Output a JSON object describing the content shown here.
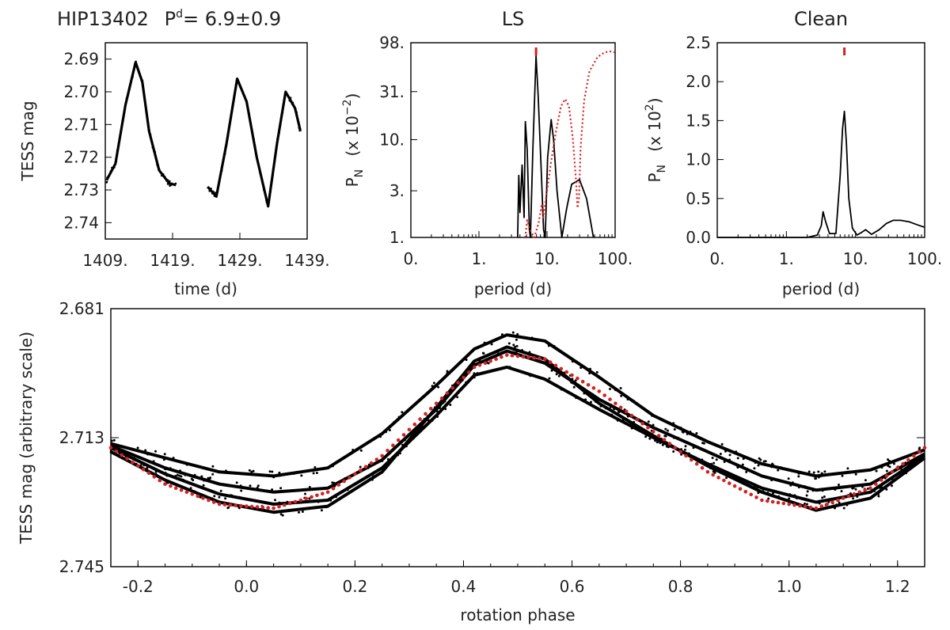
{
  "chart_data": [
    {
      "type": "scatter",
      "panel": "light-curve",
      "title_star": "HIP13402",
      "title_period_label": "P",
      "title_period_sup": "d",
      "title_period_value": "= 6.9±0.9",
      "xlabel": "time (d)",
      "ylabel": "TESS mag",
      "xlim": [
        1409,
        1439
      ],
      "ylim": [
        2.745,
        2.685
      ],
      "xticks": [
        1409,
        1419,
        1429,
        1439
      ],
      "xtick_labels": [
        "1409.",
        "1419.",
        "1429.",
        "1439."
      ],
      "yticks": [
        2.69,
        2.7,
        2.71,
        2.72,
        2.73,
        2.74
      ],
      "ytick_labels": [
        "2.69",
        "2.70",
        "2.71",
        "2.72",
        "2.73",
        "2.74"
      ],
      "series": [
        {
          "name": "segment 1",
          "x": [
            1409.2,
            1410.5,
            1412.0,
            1413.5,
            1414.5,
            1415.5,
            1417.0,
            1418.5,
            1419.5
          ],
          "y": [
            2.727,
            2.722,
            2.704,
            2.691,
            2.697,
            2.712,
            2.724,
            2.728,
            2.7285
          ]
        },
        {
          "name": "segment 2",
          "x": [
            1424.2,
            1425.5,
            1427.0,
            1428.6,
            1430.0,
            1431.5,
            1433.2,
            1434.5,
            1435.8,
            1437.2,
            1438.0
          ],
          "y": [
            2.729,
            2.732,
            2.716,
            2.696,
            2.703,
            2.72,
            2.735,
            2.716,
            2.7,
            2.705,
            2.712
          ]
        }
      ]
    },
    {
      "type": "line",
      "panel": "LS",
      "title": "LS",
      "xlabel": "period (d)",
      "ylabel": "P",
      "ylabel_sub": "N",
      "ylabel_unit": "(x 10",
      "ylabel_exp": "−2",
      "ylabel_close": ")",
      "xscale": "log",
      "yscale": "log",
      "xlim": [
        0.1,
        100
      ],
      "ylim": [
        1,
        98
      ],
      "xticks": [
        0.1,
        1,
        10,
        100
      ],
      "xtick_labels": [
        "0.",
        "1.",
        "10.",
        "100."
      ],
      "yticks": [
        1,
        3,
        10,
        31,
        98
      ],
      "ytick_labels": [
        "1.",
        "3.",
        "10.",
        "31.",
        "98."
      ],
      "series": [
        {
          "name": "periodogram",
          "color": "#000000",
          "style": "solid",
          "x": [
            3.7,
            3.85,
            4.0,
            4.3,
            4.6,
            4.8,
            5.1,
            5.5,
            5.7,
            6.2,
            6.9,
            7.4,
            8.2,
            8.9,
            9.4,
            10.2,
            11.5,
            12.5,
            14.0,
            16.5,
            19.5,
            23.0,
            30.0,
            38.0,
            48.0
          ],
          "y": [
            1,
            4.3,
            1.8,
            5.5,
            1.6,
            15.3,
            8.0,
            1.2,
            1.0,
            8.0,
            72.0,
            28.0,
            5.0,
            1.2,
            1.0,
            6.5,
            16.0,
            10.0,
            3.0,
            1.0,
            2.0,
            3.5,
            3.9,
            2.5,
            1.0
          ]
        },
        {
          "name": "spectral window",
          "color": "#d62020",
          "style": "dotted",
          "x": [
            4.8,
            5.1,
            5.6,
            6.5,
            7.5,
            8.4,
            8.8,
            10.0,
            11.5,
            13.5,
            16.0,
            18.5,
            21.0,
            24.0,
            26.5,
            28.0,
            29.5,
            31.0,
            35.0,
            42.0,
            55.0,
            70.0,
            85.0,
            100.0
          ],
          "y": [
            1.0,
            1.5,
            1.2,
            1.0,
            1.4,
            2.2,
            1.6,
            3.0,
            6.0,
            12.0,
            22.0,
            26.0,
            22.0,
            10.0,
            4.0,
            2.0,
            2.5,
            8.0,
            25.0,
            50.0,
            70.0,
            78.0,
            80.0,
            78.0
          ]
        }
      ],
      "marker": {
        "x": 6.9,
        "color": "#d62020"
      }
    },
    {
      "type": "line",
      "panel": "Clean",
      "title": "Clean",
      "xlabel": "period (d)",
      "ylabel": "P",
      "ylabel_sub": "N",
      "ylabel_unit": "(x 10",
      "ylabel_exp": "2",
      "ylabel_close": ")",
      "xscale": "log",
      "xlim": [
        0.1,
        100
      ],
      "ylim": [
        0,
        2.5
      ],
      "xticks": [
        0.1,
        1,
        10,
        100
      ],
      "xtick_labels": [
        "0.",
        "1.",
        "10.",
        "100."
      ],
      "yticks": [
        0,
        0.5,
        1.0,
        1.5,
        2.0,
        2.5
      ],
      "ytick_labels": [
        "0.0",
        "0.5",
        "1.0",
        "1.5",
        "2.0",
        "2.5"
      ],
      "series": [
        {
          "name": "clean periodogram",
          "color": "#000000",
          "style": "solid",
          "x": [
            0.1,
            1.0,
            2.0,
            2.8,
            3.2,
            3.4,
            3.7,
            4.2,
            5.2,
            6.0,
            6.5,
            6.9,
            7.4,
            8.0,
            9.0,
            10.5,
            12.0,
            14.0,
            17.0,
            22.0,
            28.0,
            35.0,
            45.0,
            60.0,
            80.0,
            100.0
          ],
          "y": [
            0.0,
            0.0,
            0.0,
            0.03,
            0.15,
            0.33,
            0.2,
            0.05,
            0.05,
            0.8,
            1.4,
            1.62,
            1.2,
            0.5,
            0.12,
            0.03,
            0.06,
            0.1,
            0.04,
            0.1,
            0.18,
            0.22,
            0.22,
            0.2,
            0.16,
            0.13
          ]
        }
      ],
      "marker": {
        "x": 6.9,
        "color": "#d62020"
      }
    },
    {
      "type": "scatter",
      "panel": "phased",
      "xlabel": "rotation phase",
      "ylabel": "TESS mag (arbitrary scale)",
      "xlim": [
        -0.25,
        1.25
      ],
      "ylim": [
        2.745,
        2.681
      ],
      "xticks": [
        -0.2,
        0.0,
        0.2,
        0.4,
        0.6,
        0.8,
        1.0,
        1.2
      ],
      "xtick_labels": [
        "-0.2",
        "0.0",
        "0.2",
        "0.4",
        "0.6",
        "0.8",
        "1.0",
        "1.2"
      ],
      "yticks": [
        2.681,
        2.713,
        2.745
      ],
      "ytick_labels": [
        "2.681",
        "2.713",
        "2.745"
      ],
      "series": [
        {
          "name": "branch 1",
          "color": "#000000",
          "x": [
            -0.25,
            -0.15,
            -0.05,
            0.05,
            0.15,
            0.25,
            0.35,
            0.42,
            0.48,
            0.55,
            0.65,
            0.75,
            0.85,
            0.95,
            1.05,
            1.15,
            1.25
          ],
          "y": [
            2.7145,
            2.718,
            2.7215,
            2.7225,
            2.7205,
            2.712,
            2.7,
            2.691,
            2.6875,
            2.689,
            2.698,
            2.7075,
            2.714,
            2.7195,
            2.7225,
            2.721,
            2.716
          ]
        },
        {
          "name": "branch 2",
          "color": "#000000",
          "x": [
            -0.25,
            -0.15,
            -0.05,
            0.05,
            0.15,
            0.25,
            0.35,
            0.42,
            0.48,
            0.55,
            0.65,
            0.75,
            0.85,
            0.95,
            1.05,
            1.15,
            1.25
          ],
          "y": [
            2.715,
            2.7205,
            2.7245,
            2.7265,
            2.7255,
            2.7185,
            2.706,
            2.695,
            2.6915,
            2.6945,
            2.7035,
            2.7105,
            2.7165,
            2.7225,
            2.726,
            2.7245,
            2.717
          ]
        },
        {
          "name": "branch 3",
          "color": "#000000",
          "x": [
            -0.25,
            -0.15,
            -0.05,
            0.05,
            0.15,
            0.25,
            0.35,
            0.42,
            0.48,
            0.55,
            0.65,
            0.75,
            0.85,
            0.95,
            1.05,
            1.15,
            1.25
          ],
          "y": [
            2.7155,
            2.722,
            2.727,
            2.7295,
            2.7285,
            2.7205,
            2.7075,
            2.6975,
            2.6955,
            2.6985,
            2.706,
            2.713,
            2.7195,
            2.7255,
            2.729,
            2.7265,
            2.7175
          ]
        },
        {
          "name": "branch 4",
          "color": "#000000",
          "x": [
            -0.25,
            -0.15,
            -0.05,
            0.05,
            0.15,
            0.25,
            0.35,
            0.42,
            0.48,
            0.55,
            0.65,
            0.75,
            0.85,
            0.95,
            1.05,
            1.15,
            1.25
          ],
          "y": [
            2.7165,
            2.7235,
            2.729,
            2.7315,
            2.73,
            2.7215,
            2.7055,
            2.694,
            2.6905,
            2.6935,
            2.7045,
            2.7125,
            2.72,
            2.7265,
            2.731,
            2.728,
            2.718
          ]
        },
        {
          "name": "sinusoidal fit",
          "color": "#d62020",
          "style": "dotted",
          "x": [
            -0.25,
            -0.15,
            -0.05,
            0.05,
            0.15,
            0.25,
            0.35,
            0.42,
            0.48,
            0.55,
            0.65,
            0.75,
            0.85,
            0.95,
            1.05,
            1.15,
            1.25
          ],
          "y": [
            2.7155,
            2.7245,
            2.7295,
            2.7305,
            2.7265,
            2.7175,
            2.7045,
            2.6955,
            2.6925,
            2.6935,
            2.7015,
            2.7115,
            2.7215,
            2.7285,
            2.7305,
            2.7255,
            2.7155
          ]
        }
      ]
    }
  ]
}
